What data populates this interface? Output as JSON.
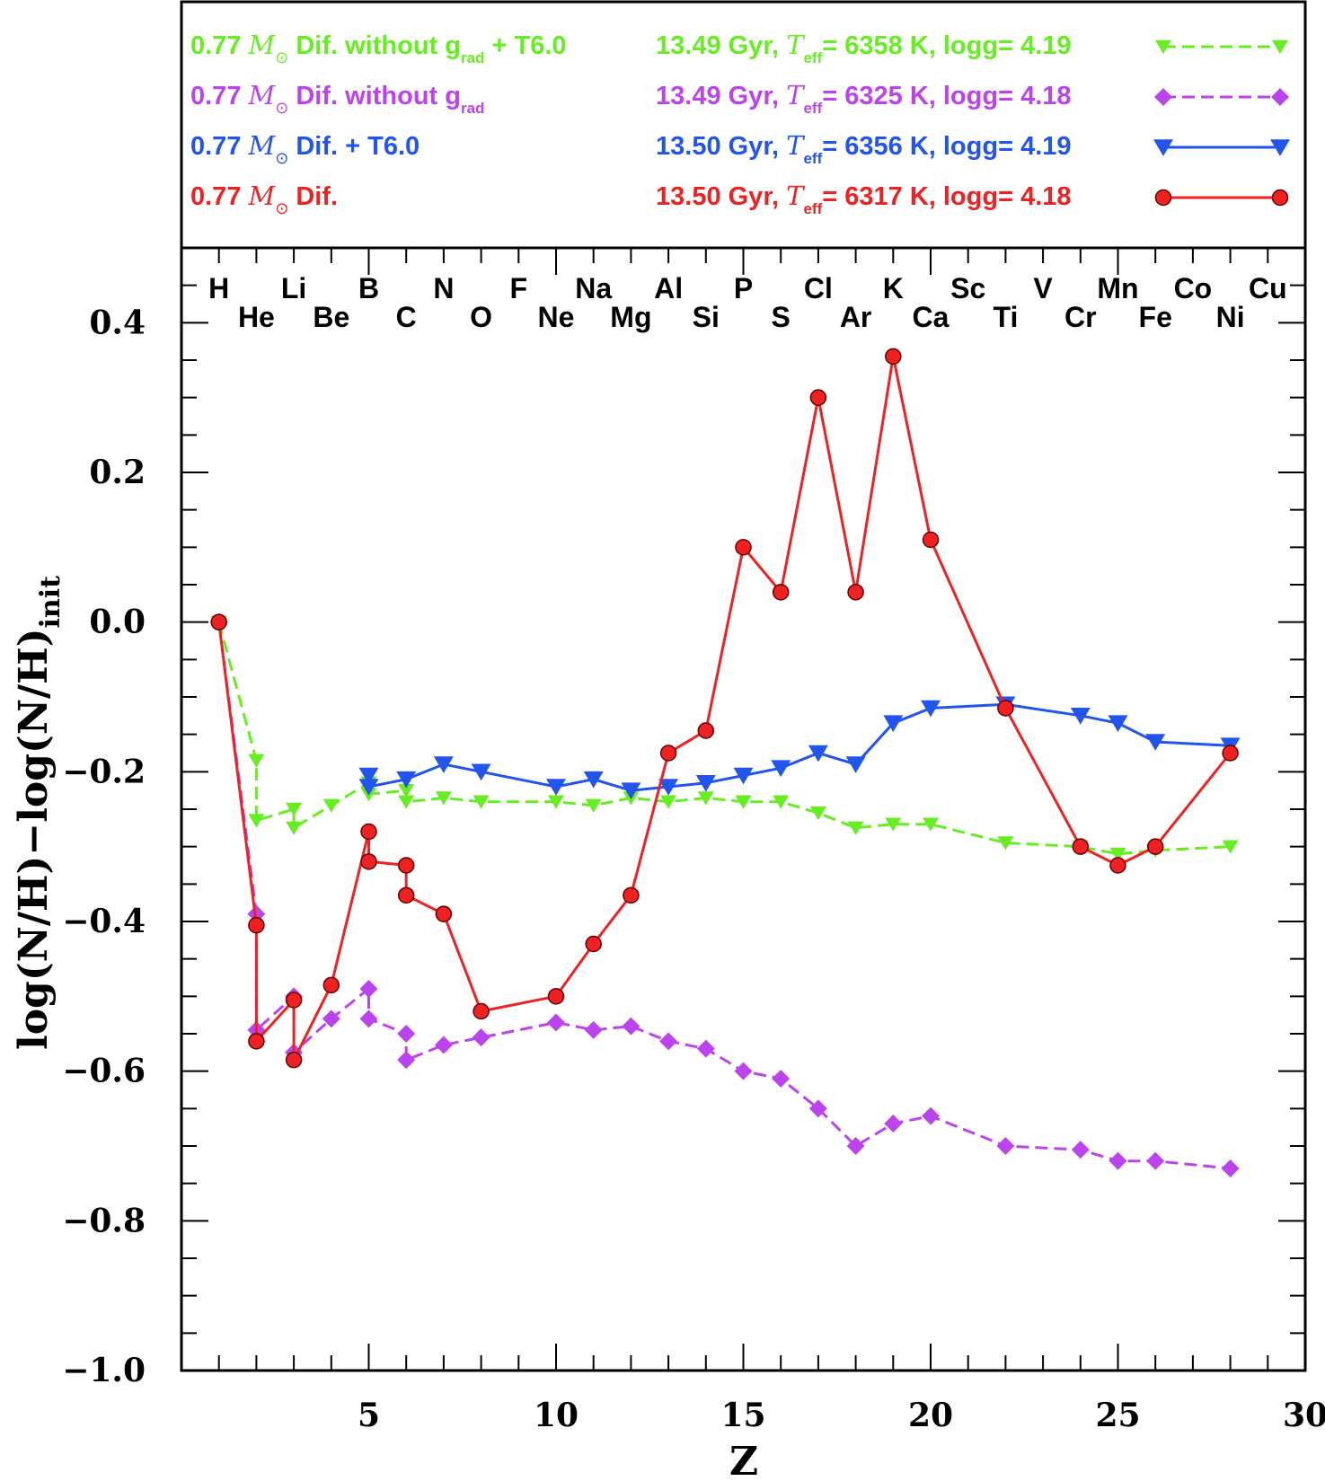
{
  "chart_data": {
    "type": "line",
    "xlabel": "Z",
    "ylabel": "log(N/H)−log(N/H)",
    "ylabel_sub": "init",
    "xlim": [
      0,
      30
    ],
    "ylim": [
      -1.0,
      0.5
    ],
    "x_ticks": [
      5,
      10,
      15,
      20,
      25,
      30
    ],
    "y_ticks": [
      0.4,
      0.2,
      0.0,
      -0.2,
      -0.4,
      -0.6,
      -0.8,
      -1.0
    ],
    "y_tick_labels": [
      "0.4",
      "0.2",
      "0.0",
      "−0.2",
      "−0.4",
      "−0.6",
      "−0.8",
      "−1.0"
    ],
    "elements": [
      "H",
      "He",
      "Li",
      "Be",
      "B",
      "C",
      "N",
      "O",
      "F",
      "Ne",
      "Na",
      "Mg",
      "Al",
      "Si",
      "P",
      "S",
      "Cl",
      "Ar",
      "K",
      "Ca",
      "Sc",
      "Ti",
      "V",
      "Cr",
      "Mn",
      "Fe",
      "Co",
      "Ni",
      "Cu"
    ],
    "series": [
      {
        "id": "green",
        "mass": "0.77",
        "mass_unit": "M",
        "desc": "Dif. without g",
        "desc_sub": "rad",
        "desc_tail": "+ T6.0",
        "stats_age": "13.49 Gyr,",
        "stats_teff_value": "= 6358 K, logg= 4.19",
        "color": "#66ee22",
        "dashed": true,
        "marker": "tri-down-small",
        "points": [
          [
            1,
            0.0
          ],
          [
            2,
            -0.185
          ],
          [
            2,
            -0.265
          ],
          [
            3,
            -0.25
          ],
          [
            3,
            -0.275
          ],
          [
            4,
            -0.245
          ],
          [
            5,
            -0.215
          ],
          [
            5,
            -0.23
          ],
          [
            6,
            -0.225
          ],
          [
            6,
            -0.24
          ],
          [
            7,
            -0.235
          ],
          [
            8,
            -0.24
          ],
          [
            10,
            -0.24
          ],
          [
            11,
            -0.245
          ],
          [
            12,
            -0.235
          ],
          [
            13,
            -0.24
          ],
          [
            14,
            -0.235
          ],
          [
            15,
            -0.24
          ],
          [
            16,
            -0.24
          ],
          [
            17,
            -0.255
          ],
          [
            18,
            -0.275
          ],
          [
            19,
            -0.27
          ],
          [
            20,
            -0.27
          ],
          [
            22,
            -0.295
          ],
          [
            24,
            -0.3
          ],
          [
            25,
            -0.31
          ],
          [
            26,
            -0.305
          ],
          [
            28,
            -0.3
          ]
        ]
      },
      {
        "id": "purple",
        "mass": "0.77",
        "mass_unit": "M",
        "desc": "Dif. without g",
        "desc_sub": "rad",
        "desc_tail": "",
        "stats_age": "13.49 Gyr,",
        "stats_teff_value": "= 6325 K, logg= 4.18",
        "color": "#bb44ee",
        "dashed": true,
        "marker": "diamond",
        "points": [
          [
            1,
            0.0
          ],
          [
            2,
            -0.39
          ],
          [
            2,
            -0.545
          ],
          [
            3,
            -0.5
          ],
          [
            3,
            -0.575
          ],
          [
            4,
            -0.53
          ],
          [
            5,
            -0.49
          ],
          [
            5,
            -0.53
          ],
          [
            6,
            -0.55
          ],
          [
            6,
            -0.585
          ],
          [
            7,
            -0.565
          ],
          [
            8,
            -0.555
          ],
          [
            10,
            -0.535
          ],
          [
            11,
            -0.545
          ],
          [
            12,
            -0.54
          ],
          [
            13,
            -0.56
          ],
          [
            14,
            -0.57
          ],
          [
            15,
            -0.6
          ],
          [
            16,
            -0.61
          ],
          [
            17,
            -0.65
          ],
          [
            18,
            -0.7
          ],
          [
            19,
            -0.67
          ],
          [
            20,
            -0.66
          ],
          [
            22,
            -0.7
          ],
          [
            24,
            -0.705
          ],
          [
            25,
            -0.72
          ],
          [
            26,
            -0.72
          ],
          [
            28,
            -0.73
          ]
        ]
      },
      {
        "id": "blue",
        "mass": "0.77",
        "mass_unit": "M",
        "desc": "Dif. + T6.0",
        "desc_sub": "",
        "desc_tail": "",
        "stats_age": "13.50 Gyr,",
        "stats_teff_value": "= 6356 K, logg= 4.19",
        "color": "#2255ee",
        "dashed": false,
        "marker": "tri-down",
        "points": [
          [
            5,
            -0.205
          ],
          [
            5,
            -0.22
          ],
          [
            6,
            -0.21
          ],
          [
            7,
            -0.19
          ],
          [
            8,
            -0.2
          ],
          [
            10,
            -0.22
          ],
          [
            11,
            -0.21
          ],
          [
            12,
            -0.225
          ],
          [
            13,
            -0.22
          ],
          [
            14,
            -0.215
          ],
          [
            15,
            -0.205
          ],
          [
            16,
            -0.195
          ],
          [
            17,
            -0.175
          ],
          [
            18,
            -0.19
          ],
          [
            19,
            -0.135
          ],
          [
            20,
            -0.115
          ],
          [
            22,
            -0.11
          ],
          [
            24,
            -0.125
          ],
          [
            25,
            -0.135
          ],
          [
            26,
            -0.16
          ],
          [
            28,
            -0.165
          ]
        ]
      },
      {
        "id": "red",
        "mass": "0.77",
        "mass_unit": "M",
        "desc": "Dif.",
        "desc_sub": "",
        "desc_tail": "",
        "stats_age": "13.50 Gyr,",
        "stats_teff_value": "= 6317 K, logg= 4.18",
        "color": "#ee2222",
        "dashed": false,
        "marker": "circle",
        "points": [
          [
            1,
            0.0
          ],
          [
            2,
            -0.405
          ],
          [
            2,
            -0.56
          ],
          [
            3,
            -0.505
          ],
          [
            3,
            -0.585
          ],
          [
            4,
            -0.485
          ],
          [
            5,
            -0.28
          ],
          [
            5,
            -0.32
          ],
          [
            6,
            -0.325
          ],
          [
            6,
            -0.365
          ],
          [
            7,
            -0.39
          ],
          [
            8,
            -0.52
          ],
          [
            10,
            -0.5
          ],
          [
            11,
            -0.43
          ],
          [
            12,
            -0.365
          ],
          [
            13,
            -0.175
          ],
          [
            14,
            -0.145
          ],
          [
            15,
            0.1
          ],
          [
            16,
            0.04
          ],
          [
            17,
            0.3
          ],
          [
            18,
            0.04
          ],
          [
            19,
            0.355
          ],
          [
            20,
            0.11
          ],
          [
            22,
            -0.115
          ],
          [
            24,
            -0.3
          ],
          [
            25,
            -0.325
          ],
          [
            26,
            -0.3
          ],
          [
            28,
            -0.175
          ]
        ]
      }
    ]
  }
}
